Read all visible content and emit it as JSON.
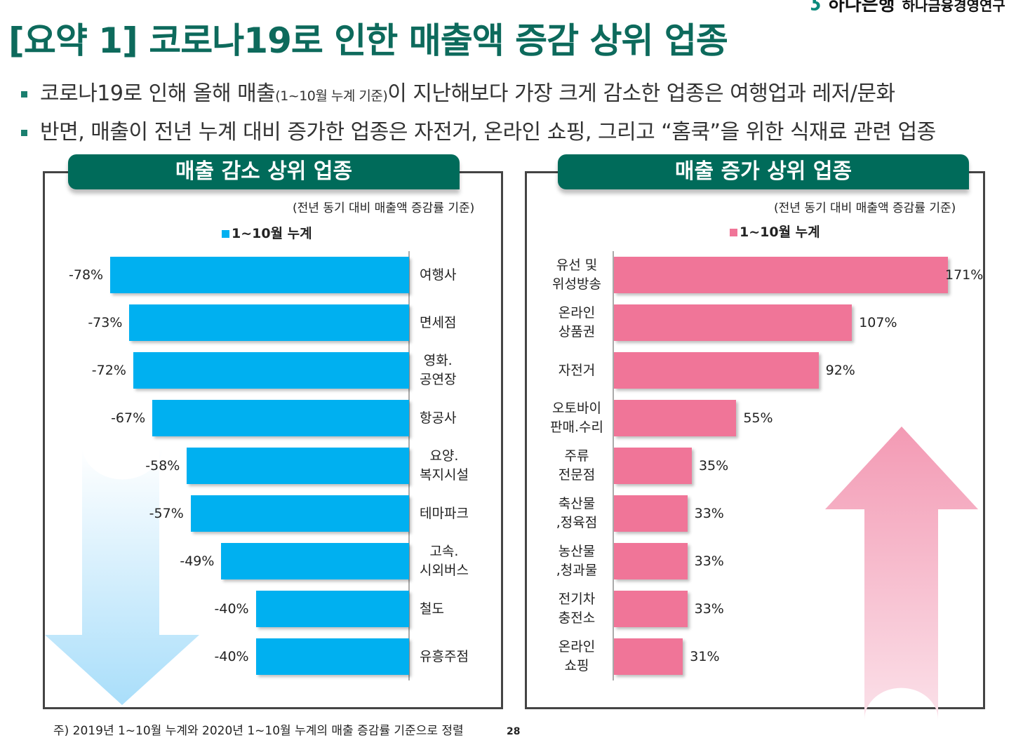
{
  "logo": {
    "mark": "ʖ",
    "bank": "하나은행",
    "institute": "하나금융경영연구"
  },
  "title": "[요약 1] 코로나19로 인한 매출액 증감 상위 업종",
  "bullets": [
    {
      "pre": "코로나19로 인해 올해 매출",
      "small": "(1~10월 누계 기준)",
      "post": "이 지난해보다 가장 크게 감소한 업종은 여행업과 레저/문화"
    },
    {
      "pre": "반면, 매출이 전년 누계 대비 증가한 업종은 자전거, 온라인 쇼핑, 그리고 “홈쿡”을 위한 식재료 관련 업종",
      "small": "",
      "post": ""
    }
  ],
  "chart_data": [
    {
      "type": "bar",
      "orientation": "horizontal",
      "title": "매출 감소 상위 업종",
      "subtitle": "(전년 동기 대비 매출액 증감률 기준)",
      "legend": [
        "1~10월 누계"
      ],
      "legend_position": "top-center",
      "color": "#00b0f0",
      "categories": [
        "여행사",
        "면세점",
        "영화.\n공연장",
        "항공사",
        "요양.\n복지시설",
        "테마파크",
        "고속.\n시외버스",
        "철도",
        "유흥주점"
      ],
      "values": [
        -78,
        -73,
        -72,
        -67,
        -58,
        -57,
        -49,
        -40,
        -40
      ],
      "labels": [
        "-78%",
        "-73%",
        "-72%",
        "-67%",
        "-58%",
        "-57%",
        "-49%",
        "-40%",
        "-40%"
      ]
    },
    {
      "type": "bar",
      "orientation": "horizontal",
      "title": "매출 증가 상위 업종",
      "subtitle": "(전년 동기 대비 매출액 증감률 기준)",
      "legend": [
        "1~10월 누계"
      ],
      "legend_position": "top-center",
      "color": "#f07598",
      "categories": [
        "유선 및\n위성방송",
        "온라인\n상품권",
        "자전거",
        "오토바이\n판매.수리",
        "주류\n전문점",
        "축산물\n,정육점",
        "농산물\n,청과물",
        "전기차\n충전소",
        "온라인\n쇼핑"
      ],
      "values": [
        171,
        107,
        92,
        55,
        35,
        33,
        33,
        33,
        31
      ],
      "labels": [
        "171%",
        "107%",
        "92%",
        "55%",
        "35%",
        "33%",
        "33%",
        "33%",
        "31%"
      ]
    }
  ],
  "footnote": "주) 2019년 1~10월 누계와 2020년 1~10월 누계의 매출 증감률 기준으로 정렬",
  "page_number": "28"
}
